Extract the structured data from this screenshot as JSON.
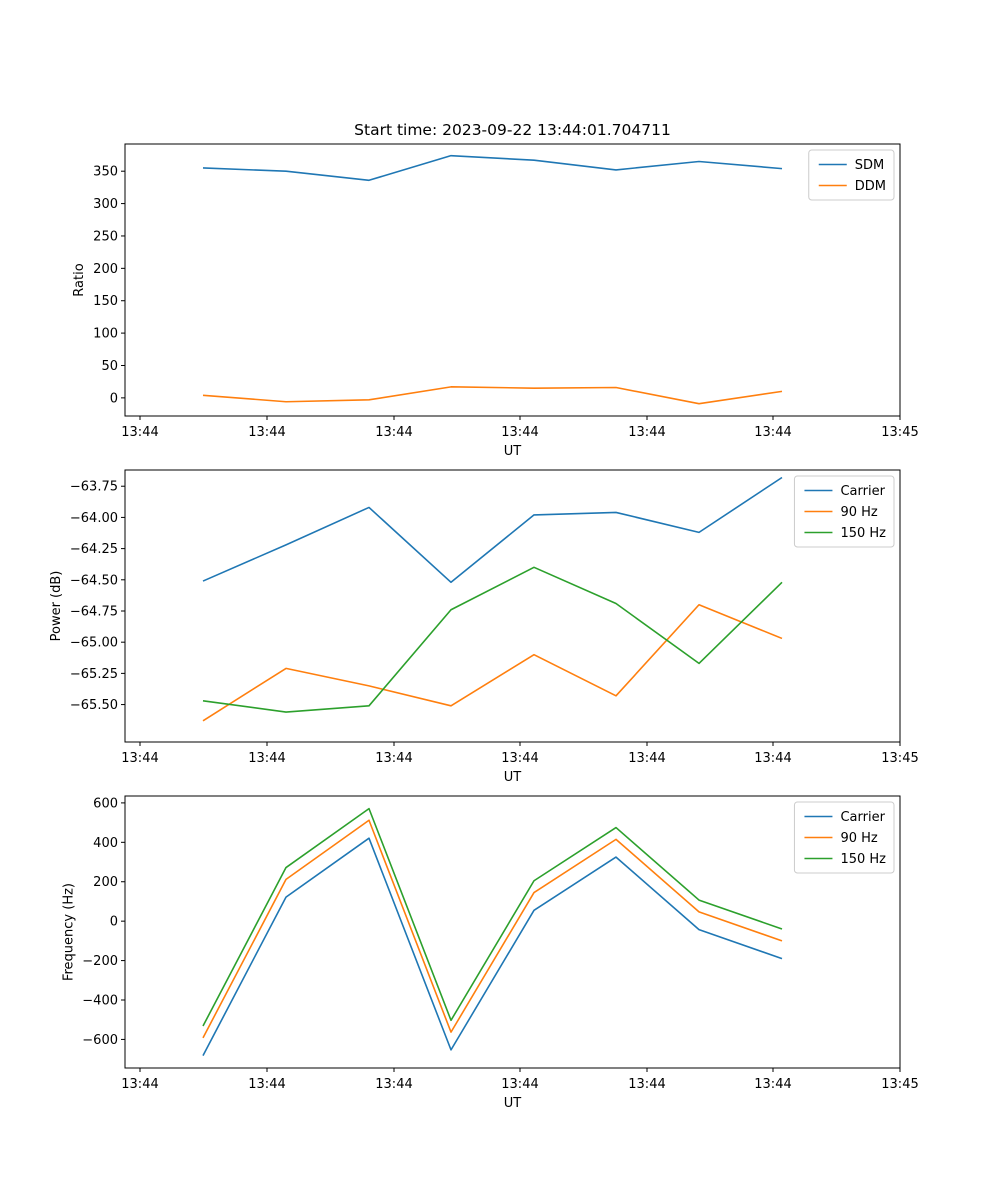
{
  "chart_data": [
    {
      "type": "line",
      "title": "Start time: 2023-09-22 13:44:01.704711",
      "xlabel": "UT",
      "ylabel": "Ratio",
      "x_tick_labels": [
        "13:44",
        "13:44",
        "13:44",
        "13:44",
        "13:44",
        "13:44",
        "13:45"
      ],
      "ylim": [
        -28,
        392
      ],
      "yticks": [
        0,
        50,
        100,
        150,
        200,
        250,
        300,
        350
      ],
      "ytick_labels": [
        "0",
        "50",
        "100",
        "150",
        "200",
        "250",
        "300",
        "350"
      ],
      "legend_position": "top-right",
      "series": [
        {
          "name": "SDM",
          "color": "#1f77b4",
          "values": [
            355,
            350,
            336,
            374,
            367,
            352,
            365,
            354
          ]
        },
        {
          "name": "DDM",
          "color": "#ff7f0e",
          "values": [
            4,
            -6,
            -3,
            17,
            15,
            16,
            -9,
            10
          ]
        }
      ]
    },
    {
      "type": "line",
      "title": "",
      "xlabel": "UT",
      "ylabel": "Power (dB)",
      "x_tick_labels": [
        "13:44",
        "13:44",
        "13:44",
        "13:44",
        "13:44",
        "13:44",
        "13:45"
      ],
      "ylim": [
        -65.8,
        -63.62
      ],
      "yticks": [
        -65.5,
        -65.25,
        -65.0,
        -64.75,
        -64.5,
        -64.25,
        -64.0,
        -63.75
      ],
      "ytick_labels": [
        "−65.50",
        "−65.25",
        "−65.00",
        "−64.75",
        "−64.50",
        "−64.25",
        "−64.00",
        "−63.75"
      ],
      "legend_position": "top-right",
      "series": [
        {
          "name": "Carrier",
          "color": "#1f77b4",
          "values": [
            -64.51,
            -64.22,
            -63.92,
            -64.52,
            -63.98,
            -63.96,
            -64.12,
            -63.68
          ]
        },
        {
          "name": "90 Hz",
          "color": "#ff7f0e",
          "values": [
            -65.63,
            -65.21,
            -65.35,
            -65.51,
            -65.1,
            -65.43,
            -64.7,
            -64.97
          ]
        },
        {
          "name": "150 Hz",
          "color": "#2ca02c",
          "values": [
            -65.47,
            -65.56,
            -65.51,
            -64.74,
            -64.4,
            -64.69,
            -65.17,
            -64.52
          ]
        }
      ]
    },
    {
      "type": "line",
      "title": "",
      "xlabel": "UT",
      "ylabel": "Frequency (Hz)",
      "x_tick_labels": [
        "13:44",
        "13:44",
        "13:44",
        "13:44",
        "13:44",
        "13:44",
        "13:45"
      ],
      "ylim": [
        -745,
        635
      ],
      "yticks": [
        -600,
        -400,
        -200,
        0,
        200,
        400,
        600
      ],
      "ytick_labels": [
        "−600",
        "−400",
        "−200",
        "0",
        "200",
        "400",
        "600"
      ],
      "legend_position": "top-right",
      "series": [
        {
          "name": "Carrier",
          "color": "#1f77b4",
          "values": [
            -682,
            122,
            421,
            -653,
            55,
            325,
            -43,
            -190
          ]
        },
        {
          "name": "90 Hz",
          "color": "#ff7f0e",
          "values": [
            -592,
            212,
            512,
            -563,
            145,
            415,
            47,
            -100
          ]
        },
        {
          "name": "150 Hz",
          "color": "#2ca02c",
          "values": [
            -532,
            272,
            571,
            -503,
            205,
            475,
            107,
            -40
          ]
        }
      ]
    }
  ]
}
